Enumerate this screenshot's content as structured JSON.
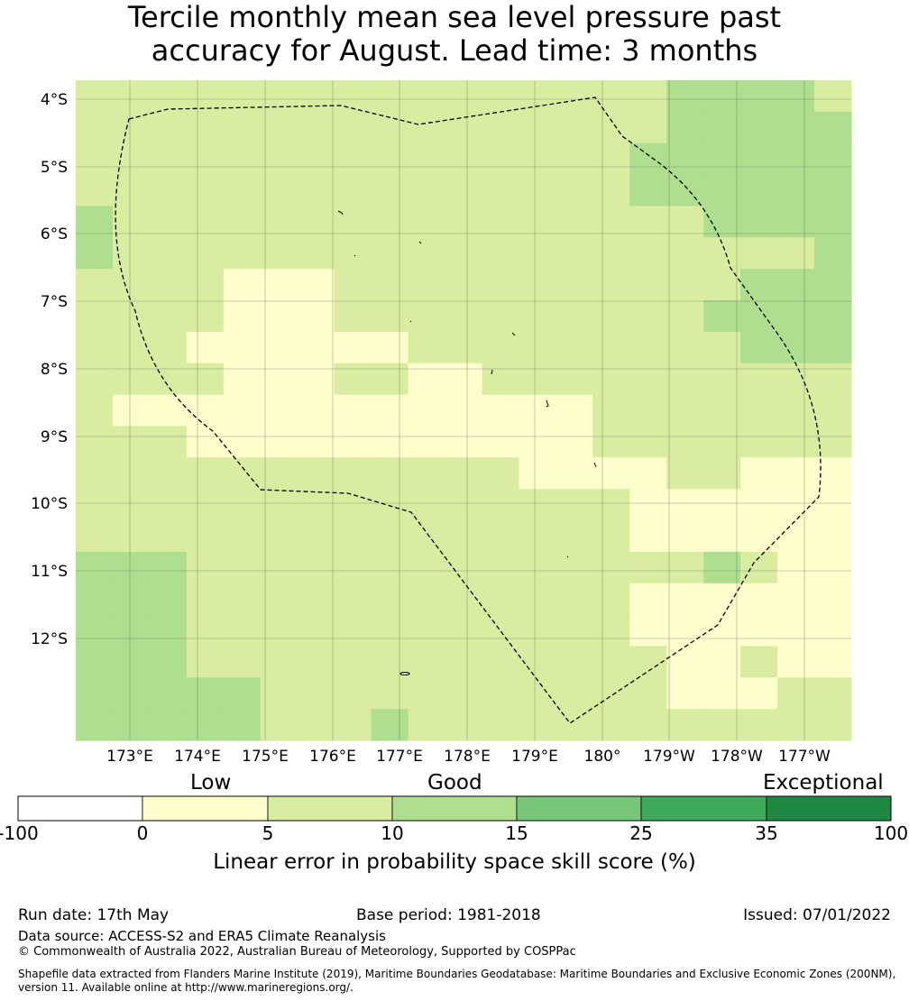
{
  "title_line1": "Tercile monthly mean sea level pressure past",
  "title_line2": "accuracy for August. Lead time: 3 months",
  "map": {
    "lat_labels": [
      "4°S",
      "5°S",
      "6°S",
      "7°S",
      "8°S",
      "9°S",
      "10°S",
      "11°S",
      "12°S"
    ],
    "lon_labels": [
      "173°E",
      "174°E",
      "175°E",
      "176°E",
      "177°E",
      "178°E",
      "179°E",
      "180°",
      "179°W",
      "178°W",
      "177°W"
    ],
    "colors": [
      "#ffffff",
      "#fefecc",
      "#d9eda1",
      "#aede8e",
      "#78c778",
      "#3ea85b",
      "#208843"
    ],
    "grid": [
      "222222222222222233332",
      "222222222222222233333",
      "222222222222222333333",
      "222222222222222333333",
      "322222222222222223333",
      "322222222222222222223",
      "222211122222222222333",
      "222211122222222223333",
      "222111111222222222333",
      "222211122112222222222",
      "211111111111112222222",
      "222111111111112222222",
      "222222222222111122111",
      "222222222222222111111",
      "222222222222222111111",
      "333222222222222223211",
      "333222222222222111111",
      "333222222222222111111",
      "333222222222222211211",
      "333332222222222211122",
      "333332223222222222222"
    ]
  },
  "colorbar": {
    "categories": [
      "Low",
      "Good",
      "Exceptional"
    ],
    "ticks": [
      "-100",
      "0",
      "5",
      "10",
      "15",
      "25",
      "35",
      "100"
    ],
    "label": "Linear error in probability space skill score (%)"
  },
  "footer": {
    "run_date": "Run date: 17th May",
    "base_period": "Base period: 1981-2018",
    "issued": "Issued: 07/01/2022",
    "data_source": "Data source: ACCESS-S2 and ERA5 Climate Reanalysis",
    "copyright": "© Commonwealth of Australia 2022, Australian Bureau of Meteorology, Supported by COSPPac",
    "shapefile_line1": "Shapefile data extracted from Flanders Marine Institute (2019), Maritime Boundaries Geodatabase: Maritime Boundaries and Exclusive Economic Zones (200NM),",
    "shapefile_line2": "version 11. Available online at http://www.marineregions.org/."
  }
}
